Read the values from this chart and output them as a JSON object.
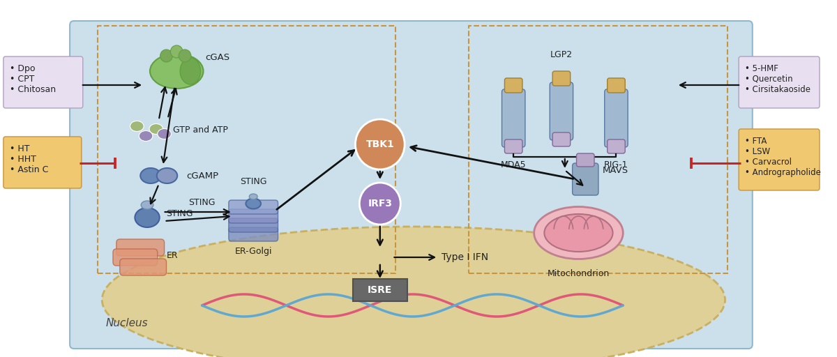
{
  "bg_cell_color": "#cce0ec",
  "bg_nucleus_color": "#e8d898",
  "left_box1_text": "• Dpo\n• CPT\n• Chitosan",
  "left_box2_text": "• HT\n• HHT\n• Astin C",
  "right_box1_text": "• 5-HMF\n• Quercetin\n• Cirsitakaoside",
  "right_box2_text": "• FTA\n• LSW\n• Carvacrol\n• Andrographolide",
  "dashed_color": "#c8943c",
  "arrow_color": "#111111",
  "inhibit_color": "#cc2222",
  "cgas_green": "#88c068",
  "gtp_green": "#a0b878",
  "gtp_purple": "#9888b8",
  "cgamp_blue": "#7090b8",
  "sting_blue": "#6888b0",
  "er_coral": "#e09878",
  "tbk1_orange": "#d08858",
  "irf3_purple": "#9878b8",
  "receptor_blue": "#a0b8d0",
  "receptor_purple": "#c0b0d0",
  "receptor_gold": "#d4b060",
  "mavs_blue": "#90a8c0",
  "mavs_purple": "#b8a8c8",
  "mito_outer": "#f0b8c0",
  "mito_inner": "#e898a8",
  "isre_gray": "#686868",
  "dna_pink": "#e05878",
  "dna_blue": "#60a8d0"
}
